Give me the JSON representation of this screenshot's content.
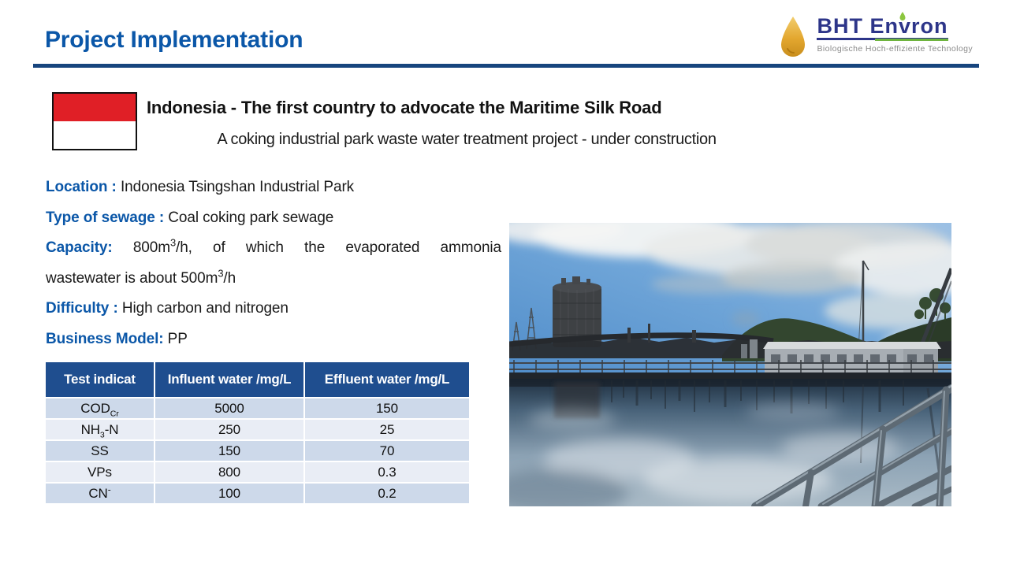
{
  "header": {
    "title": "Project Implementation"
  },
  "logo": {
    "name": "BHT Envron",
    "tagline": "Biologische  Hoch-effiziente Technology"
  },
  "intro": {
    "flag": "Indonesia",
    "heading": "Indonesia - The first country to advocate the Maritime Silk Road",
    "subheading": "A coking industrial park waste water treatment project - under construction"
  },
  "info_lines": [
    {
      "label": "Location :",
      "value": "Indonesia Tsingshan Industrial Park",
      "justify": false
    },
    {
      "label": "Type of sewage :",
      "value": "Coal coking park sewage",
      "justify": false
    },
    {
      "label": "Capacity:",
      "value": "800m^{3}/h, of which the evaporated ammonia",
      "justify": true
    },
    {
      "label": "",
      "value": "wastewater is about 500m^{3}/h",
      "justify": false
    },
    {
      "label": "Difficulty :",
      "value": "High carbon and nitrogen",
      "justify": false
    },
    {
      "label": "Business Model:",
      "value": "PP",
      "justify": false
    }
  ],
  "table": {
    "headers": [
      "Test indicat",
      "Influent water /mg/L",
      "Effluent water /mg/L"
    ],
    "rows": [
      [
        "COD_{Cr}",
        "5000",
        "150"
      ],
      [
        "NH_{3}-N",
        "250",
        "25"
      ],
      [
        "SS",
        "150",
        "70"
      ],
      [
        "VPs",
        "800",
        "0.3"
      ],
      [
        "CN^{-}",
        "100",
        "0.2"
      ]
    ]
  },
  "photo": {
    "description": "Open-air waste water treatment basin reflecting a cloudy blue sky; gas holder tank and industrial plant on the left, long grey warehouse, cranes and green hills on the right, grey steel handrail in the foreground"
  },
  "colors": {
    "title_blue": "#0B57A8",
    "divider_navy": "#17457E",
    "label_blue": "#0B57A8",
    "table_header_bg": "#1F4E8F",
    "row_dark": "#CDD9EA",
    "row_light": "#E9EDF5",
    "flag_red": "#E01F26",
    "logo_navy": "#2D3589",
    "logo_green": "#6FB43F",
    "logo_gold": "#E3A72F",
    "tagline_gray": "#8A8A8A"
  }
}
